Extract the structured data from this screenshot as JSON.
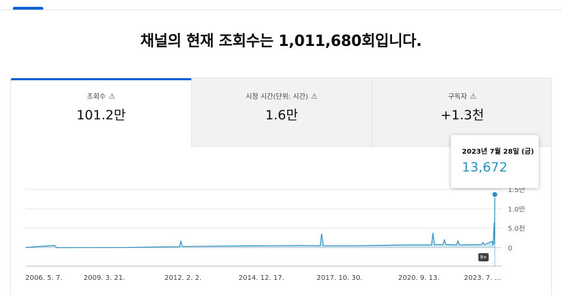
{
  "headline": "채널의 현재 조회수는 1,011,680회입니다.",
  "tabs": [
    {
      "label": "조회수",
      "value": "101.2만",
      "selected": true
    },
    {
      "label": "시청 시간(단위: 시간)",
      "value": "1.6만",
      "selected": false
    },
    {
      "label": "구독자",
      "value": "+1.3천",
      "selected": false
    }
  ],
  "warning_glyph": "⚠",
  "tooltip": {
    "date": "2023년 7월 28일 (금)",
    "value": "13,672"
  },
  "badge": "9+",
  "colors": {
    "accent": "#065fd4",
    "series": "#2a8fbd"
  },
  "chart_data": {
    "type": "area",
    "y_ticks": [
      "0",
      "5.0천",
      "1.0만",
      "1.5만"
    ],
    "ylim": [
      0,
      15000
    ],
    "x_ticks": [
      "2006. 5. 7.",
      "2009. 3. 21.",
      "2012. 2. 2.",
      "2014. 12. 17.",
      "2017. 10. 30.",
      "2020. 9. 13.",
      "2023. 7. ..."
    ],
    "series": [
      {
        "values": [
          {
            "x": "2006-05-07",
            "y": 10
          },
          {
            "x": "2007-06-01",
            "y": 600
          },
          {
            "x": "2007-07-01",
            "y": 10
          },
          {
            "x": "2010-01-01",
            "y": 50
          },
          {
            "x": "2011-01-01",
            "y": 150
          },
          {
            "x": "2012-01-01",
            "y": 250
          },
          {
            "x": "2012-01-20",
            "y": 1600
          },
          {
            "x": "2012-02-10",
            "y": 300
          },
          {
            "x": "2013-06-01",
            "y": 400
          },
          {
            "x": "2014-06-01",
            "y": 450
          },
          {
            "x": "2015-06-01",
            "y": 500
          },
          {
            "x": "2016-06-01",
            "y": 550
          },
          {
            "x": "2017-03-01",
            "y": 500
          },
          {
            "x": "2017-03-20",
            "y": 3600
          },
          {
            "x": "2017-04-10",
            "y": 500
          },
          {
            "x": "2018-06-01",
            "y": 500
          },
          {
            "x": "2019-06-01",
            "y": 600
          },
          {
            "x": "2020-06-01",
            "y": 700
          },
          {
            "x": "2021-04-01",
            "y": 700
          },
          {
            "x": "2021-04-20",
            "y": 3800
          },
          {
            "x": "2021-05-10",
            "y": 800
          },
          {
            "x": "2021-09-01",
            "y": 800
          },
          {
            "x": "2021-09-20",
            "y": 2000
          },
          {
            "x": "2021-10-10",
            "y": 800
          },
          {
            "x": "2022-03-01",
            "y": 700
          },
          {
            "x": "2022-03-20",
            "y": 1700
          },
          {
            "x": "2022-04-10",
            "y": 700
          },
          {
            "x": "2023-02-01",
            "y": 800
          },
          {
            "x": "2023-02-20",
            "y": 1400
          },
          {
            "x": "2023-03-10",
            "y": 800
          },
          {
            "x": "2023-06-20",
            "y": 1600
          },
          {
            "x": "2023-07-05",
            "y": 600
          },
          {
            "x": "2023-07-20",
            "y": 6500
          },
          {
            "x": "2023-07-25",
            "y": 900
          },
          {
            "x": "2023-07-28",
            "y": 13672
          }
        ]
      }
    ]
  }
}
